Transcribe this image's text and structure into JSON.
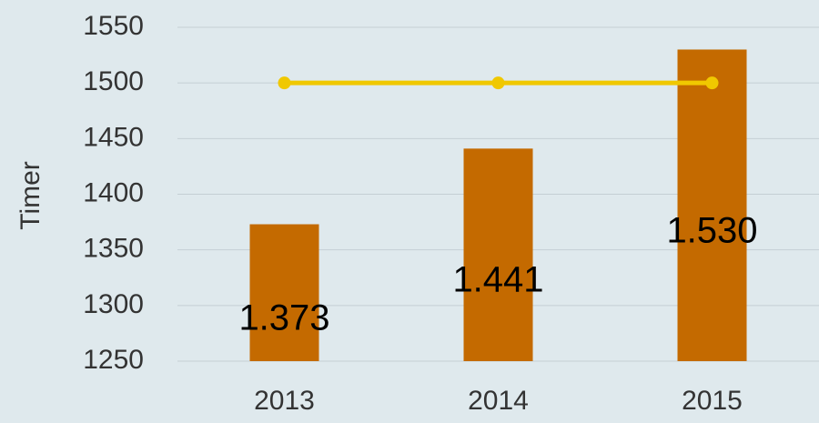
{
  "chart_data": {
    "type": "bar",
    "y_label": "Timer",
    "categories": [
      "2013",
      "2014",
      "2015"
    ],
    "series": [
      {
        "type": "bar",
        "color": "#c46a00",
        "values": [
          1373,
          1441,
          1530
        ],
        "value_labels": [
          "1.373",
          "1.441",
          "1.530"
        ]
      },
      {
        "type": "line",
        "color": "#f0c800",
        "values": [
          1500,
          1500,
          1500
        ]
      }
    ],
    "ylim": [
      1250,
      1550
    ],
    "yticks": [
      1250,
      1300,
      1350,
      1400,
      1450,
      1500,
      1550
    ],
    "grid": true
  }
}
